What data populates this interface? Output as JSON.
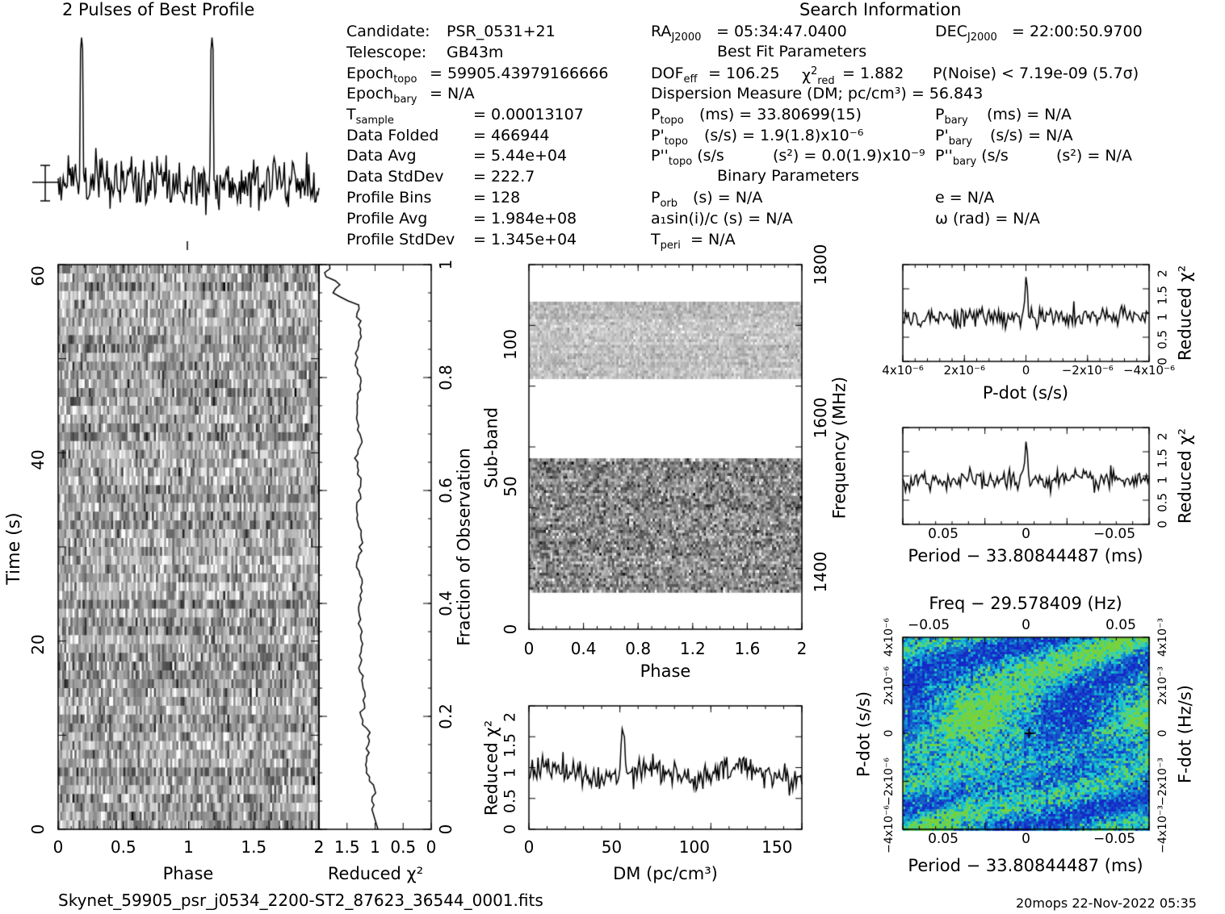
{
  "titles": {
    "profile": "2 Pulses of Best Profile",
    "search": "Search Information",
    "best_fit": "Best Fit Parameters",
    "binary": "Binary Parameters"
  },
  "info": {
    "candidate_label": "Candidate:",
    "candidate": "PSR_0531+21",
    "telescope_label": "Telescope:",
    "telescope": "GB43m",
    "epoch_topo": "= 59905.43979166666",
    "epoch_bary": "= N/A",
    "tsample": "=   0.00013107",
    "data_folded_label": "Data Folded",
    "data_folded": "=   466944",
    "data_avg_label": "Data Avg",
    "data_avg": "=   5.44e+04",
    "data_stddev_label": "Data StdDev",
    "data_stddev": "=   222.7",
    "profile_bins_label": "Profile Bins",
    "profile_bins": "=   128",
    "profile_avg_label": "Profile Avg",
    "profile_avg": "=   1.984e+08",
    "profile_stddev_label": "Profile StdDev",
    "profile_stddev": "=   1.345e+04"
  },
  "search": {
    "ra": "= 05:34:47.0400",
    "dec": "= 22:00:50.9700",
    "dof": "= 106.25",
    "chi2": "= 1.882",
    "pnoise": "P(Noise) < 7.19e-09  (5.7σ)",
    "dm": "Dispersion Measure (DM; pc/cm³) = 56.843",
    "ptopo": "(ms) =  33.80699(15)",
    "pbary": "(ms) = N/A",
    "pdtopo": "(s/s) =  1.9(1.8)x10⁻⁶",
    "pdbary": "(s/s) = N/A",
    "pddtopo": "(s²) = 0.0(1.9)x10⁻⁹",
    "pddbary": "(s²) = N/A",
    "porb": "(s) = N/A",
    "asini": "a₁sin(i)/c (s) = N/A",
    "tperi": "= N/A",
    "ecc": "e = N/A",
    "omega": "ω (rad) = N/A"
  },
  "footer": {
    "filename": "Skynet_59905_psr_j0534_2200-ST2_87623_36544_0001.fits",
    "stamp": "20mops 22-Nov-2022 05:35"
  },
  "chart_data": [
    {
      "type": "line",
      "title": "2 Pulses of Best Profile",
      "x_range": [
        0,
        2
      ],
      "pulses_at_phase": [
        0.18,
        1.18
      ],
      "peak_relative_height": 3.6
    },
    {
      "type": "heatmap",
      "xlabel": "Phase",
      "ylabel": "Time (s)",
      "x_ticks": [
        "0",
        "0.5",
        "1",
        "1.5",
        "2"
      ],
      "y_ticks": [
        "0",
        "20",
        "40",
        "60"
      ],
      "xlim": [
        0,
        2
      ],
      "ylim": [
        0,
        61.2
      ]
    },
    {
      "type": "line",
      "xlabel": "Reduced χ²",
      "ylabel": "Fraction of Observation",
      "x_ticks": [
        "2",
        "1.5",
        "1",
        "0.5",
        "0"
      ],
      "y_ticks": [
        "0",
        "0.2",
        "0.4",
        "0.6",
        "0.8",
        "1"
      ],
      "xlim": [
        2,
        0
      ],
      "ylim": [
        0,
        1
      ]
    },
    {
      "type": "heatmap",
      "xlabel": "Phase",
      "ylabel": "Sub-band",
      "y2label": "Frequency (MHz)",
      "x_ticks": [
        "0",
        "0.4",
        "0.8",
        "1.2",
        "1.6",
        "2"
      ],
      "y_ticks": [
        "0",
        "50",
        "100"
      ],
      "y2_ticks": [
        "1400",
        "1600",
        "1800"
      ],
      "xlim": [
        0,
        2
      ],
      "ylim": [
        0,
        128
      ],
      "empty_bands": [
        [
          0,
          13
        ],
        [
          60,
          88
        ],
        [
          115,
          128
        ]
      ]
    },
    {
      "type": "line",
      "xlabel": "DM (pc/cm³)",
      "ylabel": "Reduced χ²",
      "x_ticks": [
        "0",
        "50",
        "100",
        "150"
      ],
      "y_ticks": [
        "0",
        "0.5",
        "1",
        "1.5",
        "2"
      ],
      "xlim": [
        0,
        165
      ],
      "ylim": [
        0,
        2.2
      ],
      "peak": {
        "x": 56.8,
        "y": 1.95
      }
    },
    {
      "type": "line",
      "xlabel": "P-dot (s/s)",
      "ylabel": "Reduced χ²",
      "x_ticks": [
        "4x10⁻⁶",
        "2x10⁻⁶",
        "0",
        "−2x10⁻⁶",
        "−4x10⁻⁶"
      ],
      "y_ticks": [
        "0",
        "0.5",
        "1",
        "1.5",
        "2"
      ],
      "ylim": [
        0,
        2.2
      ],
      "peak": {
        "x": 0,
        "y": 1.85
      }
    },
    {
      "type": "line",
      "xlabel": "Period − 33.80844487 (ms)",
      "ylabel": "Reduced χ²",
      "x_ticks": [
        "0.05",
        "0",
        "−0.05"
      ],
      "y_ticks": [
        "0",
        "0.5",
        "1",
        "1.5",
        "2"
      ],
      "ylim": [
        0,
        2.2
      ],
      "peak": {
        "x": 0,
        "y": 1.85
      }
    },
    {
      "type": "heatmap",
      "title": "Freq − 29.578409 (Hz)",
      "xlabel": "Period − 33.80844487 (ms)",
      "ylabel": "P-dot (s/s)",
      "y2label": "F-dot (Hz/s)",
      "x_ticks": [
        "0.05",
        "0",
        "−0.05"
      ],
      "top_ticks": [
        "−0.05",
        "0",
        "0.05"
      ],
      "y_ticks": [
        "−4x10⁻⁶",
        "−2x10⁻⁶",
        "0",
        "2x10⁻⁶",
        "4x10⁻⁶"
      ],
      "y2_ticks": [
        "−4x10⁻³",
        "−2x10⁻³",
        "0",
        "2x10⁻³",
        "4x10⁻³"
      ],
      "marker": {
        "x": 0,
        "y": 0
      }
    }
  ]
}
